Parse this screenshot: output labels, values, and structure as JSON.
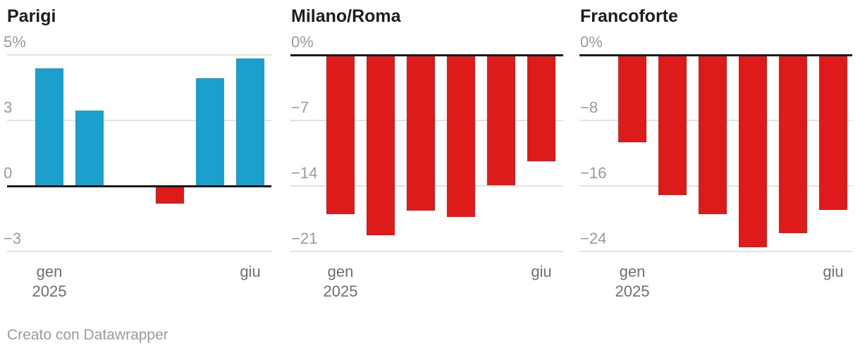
{
  "page": {
    "background": "#ffffff",
    "footer": {
      "label": "Creato con Datawrapper"
    }
  },
  "colors": {
    "positive_bar": "#1b9fcd",
    "negative_bar": "#de1b1b",
    "zero_line": "#1a1a1a",
    "gridline": "#e3e3e3",
    "title_text": "#1d1d1d",
    "tick_text": "#9a9a9a",
    "month_text": "#6f6f6f",
    "footer_text": "#9a9a9a"
  },
  "chart_data": [
    {
      "type": "bar",
      "title": "Parigi",
      "categories": [
        "gen 2025",
        "",
        "",
        "",
        "",
        "giu"
      ],
      "values": [
        4.6,
        3.3,
        0,
        -0.8,
        4.3,
        4.9
      ],
      "unit": "%",
      "ylim": [
        -3,
        5
      ],
      "grid": true,
      "legend": false,
      "y_ticks": {
        "values": [
          5,
          3,
          0,
          -3
        ],
        "labels": [
          "5%",
          "3",
          "0",
          "−3"
        ]
      },
      "x_tick_labels": {
        "first_line_1": "gen",
        "first_line_2": "2025",
        "last": "giu"
      },
      "bar_color_positive": "#1b9fcd",
      "bar_color_negative": "#de1b1b"
    },
    {
      "type": "bar",
      "title": "Milano/Roma",
      "categories": [
        "gen 2025",
        "",
        "",
        "",
        "",
        "giu"
      ],
      "values": [
        -17,
        -19.3,
        -16.6,
        -17.3,
        -13.9,
        -11.4
      ],
      "unit": "%",
      "ylim": [
        -21,
        0
      ],
      "grid": true,
      "legend": false,
      "y_ticks": {
        "values": [
          0,
          -7,
          -14,
          -21
        ],
        "labels": [
          "0%",
          "−7",
          "−14",
          "−21"
        ]
      },
      "x_tick_labels": {
        "first_line_1": "gen",
        "first_line_2": "2025",
        "last": "giu"
      },
      "bar_color_positive": "#1b9fcd",
      "bar_color_negative": "#de1b1b"
    },
    {
      "type": "bar",
      "title": "Francoforte",
      "categories": [
        "gen 2025",
        "",
        "",
        "",
        "",
        "giu"
      ],
      "values": [
        -10.7,
        -17.1,
        -19.4,
        -23.5,
        -21.8,
        -18.9
      ],
      "unit": "%",
      "ylim": [
        -24,
        0
      ],
      "grid": true,
      "legend": false,
      "y_ticks": {
        "values": [
          0,
          -8,
          -16,
          -24
        ],
        "labels": [
          "0%",
          "−8",
          "−16",
          "−24"
        ]
      },
      "x_tick_labels": {
        "first_line_1": "gen",
        "first_line_2": "2025",
        "last": "giu"
      },
      "bar_color_positive": "#1b9fcd",
      "bar_color_negative": "#de1b1b"
    }
  ]
}
